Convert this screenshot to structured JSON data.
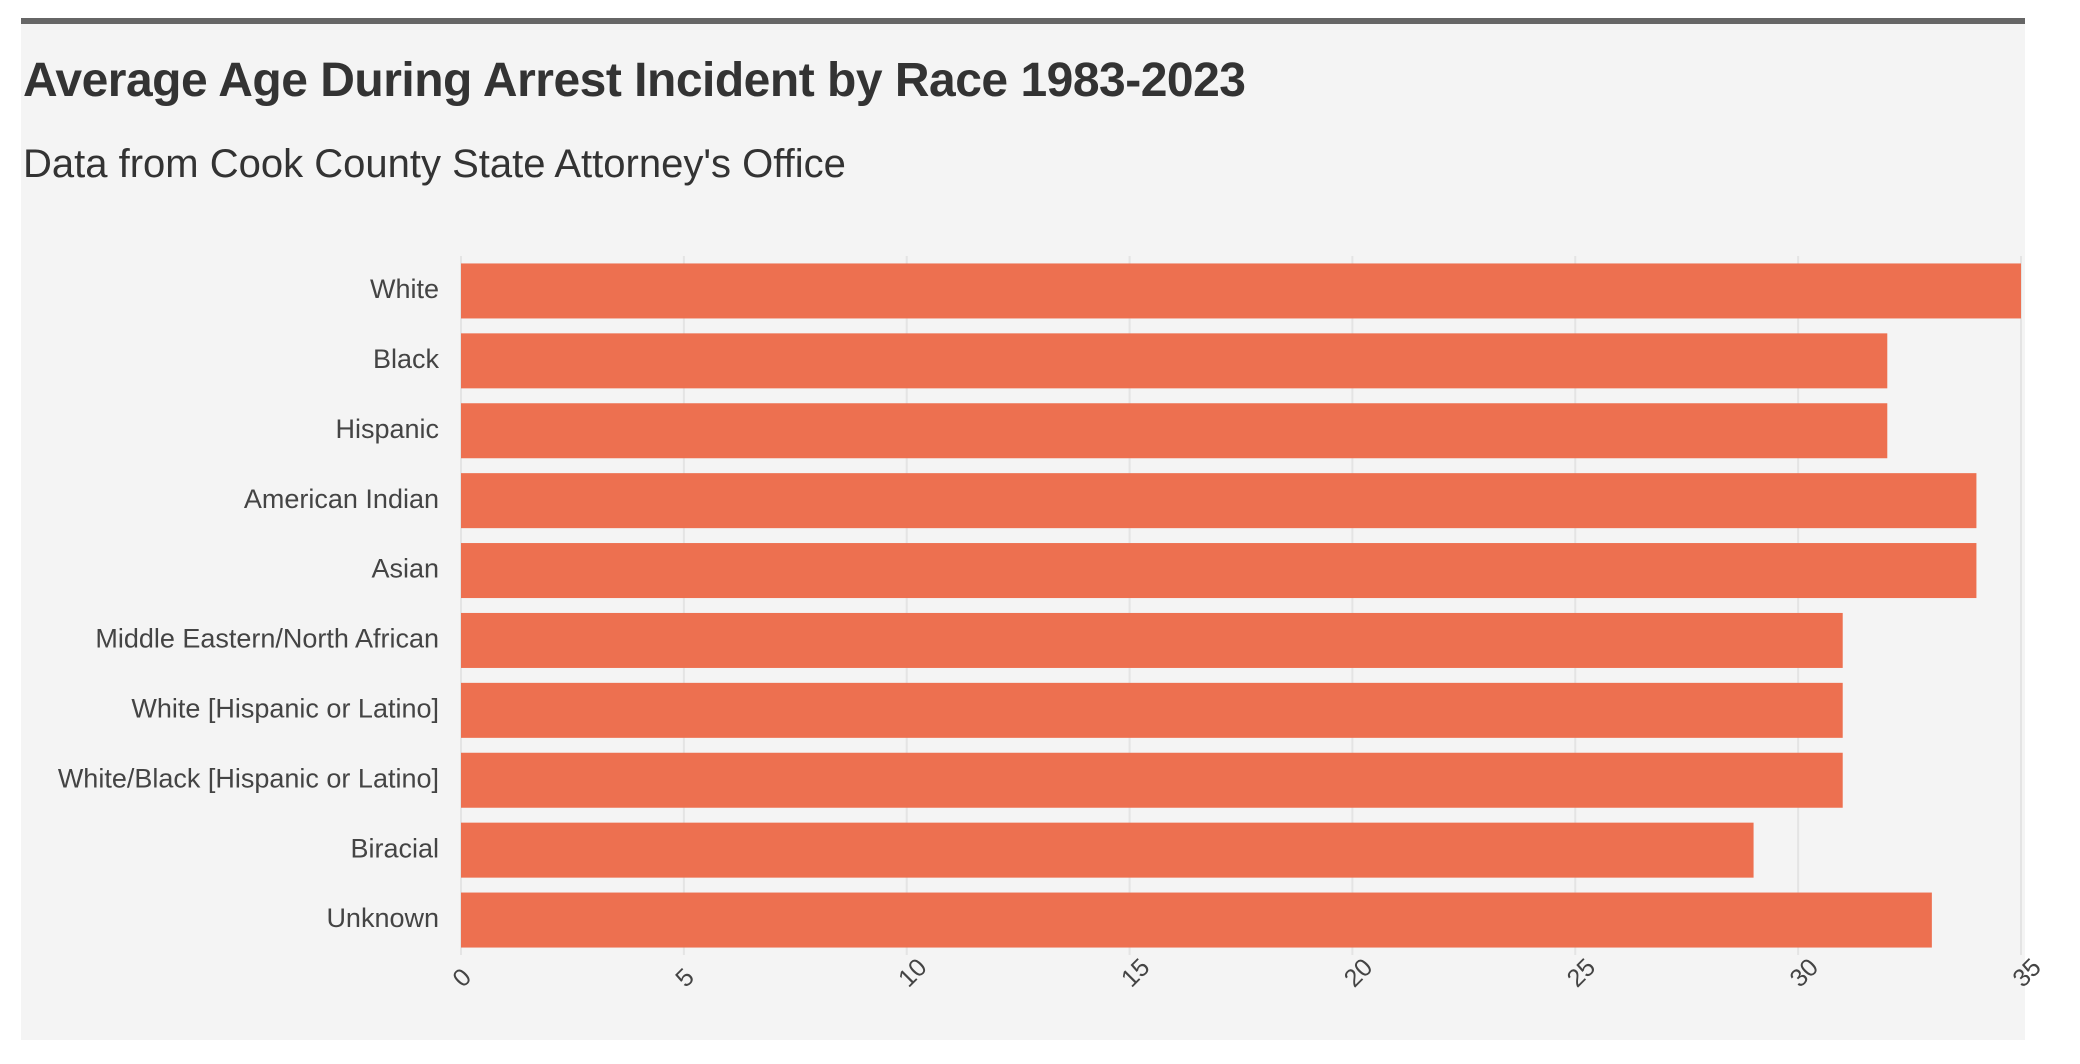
{
  "chart_data": {
    "type": "bar",
    "orientation": "horizontal",
    "title": "Average Age During Arrest Incident by Race 1983-2023",
    "subtitle": "Data from Cook County State Attorney's Office",
    "xlabel": "",
    "ylabel": "",
    "categories": [
      "White",
      "Black",
      "Hispanic",
      "American Indian",
      "Asian",
      "Middle Eastern/North African",
      "White [Hispanic or Latino]",
      "White/Black [Hispanic or Latino]",
      "Biracial",
      "Unknown"
    ],
    "values": [
      35,
      32,
      32,
      34,
      34,
      31,
      31,
      31,
      29,
      33
    ],
    "xlim": [
      0,
      35
    ],
    "xticks": [
      "0",
      "5",
      "10",
      "15",
      "20",
      "25",
      "30",
      "35"
    ],
    "grid": true,
    "legend": "none",
    "bar_color": "#ed7050",
    "grid_color": "#e4e4e4"
  },
  "colors": {
    "background": "#f4f4f4",
    "top_border": "#666666",
    "text": "#333333"
  }
}
